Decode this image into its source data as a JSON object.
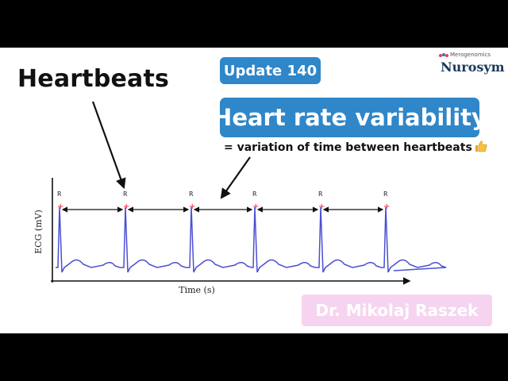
{
  "heading": "Heartbeats",
  "badge_update": "Update 140",
  "badge_title": "Heart rate variability",
  "subtitle": "= variation of time between heartbeats",
  "subtitle_icon": "thumbs-up-icon",
  "logo": {
    "small": "Merogenomics",
    "main": "Nurosym"
  },
  "author": "Dr. Mikolaj Raszek",
  "ecg": {
    "ylabel": "ECG (mV)",
    "xlabel": "Time (s)",
    "peak_label": "R",
    "colors": {
      "trace": "#4a4fd0",
      "peak": "#e0203a",
      "axis": "#111111",
      "badge": "#2f86c8",
      "author_bg": "#f6d4f0"
    }
  }
}
